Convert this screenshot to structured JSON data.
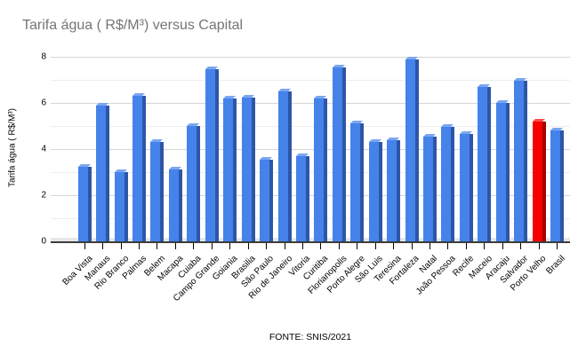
{
  "chart_data": {
    "type": "bar",
    "title": "Tarifa água ( R$/M³) versus Capital",
    "ylabel": "Tarifa água ( R$/M³)",
    "source": "FONTE: SNIS/2021",
    "ylim": [
      0,
      8
    ],
    "yticks": [
      0,
      2,
      4,
      6,
      8
    ],
    "minor_gridlines": [
      1,
      3,
      5,
      7
    ],
    "grid": "on",
    "legend": "none",
    "categories": [
      "Boa Vista",
      "Manaus",
      "Rio Branco",
      "Palmas",
      "Belem",
      "Macapa",
      "Cuiaba",
      "Campo Grande",
      "Goiania",
      "Brasilia",
      "São Paulo",
      "Rio de Janeiro",
      "Vitoria",
      "Curitiba",
      "Florianopolis",
      "Porto Alegre",
      "São Luis",
      "Teresina",
      "Fortaleza",
      "Natal",
      "João Pessoa",
      "Recife",
      "Maceio",
      "Aracaju",
      "Salvador",
      "Porto Velho",
      "Brasil"
    ],
    "values": [
      3.25,
      5.9,
      3.0,
      6.3,
      4.3,
      3.1,
      5.0,
      7.45,
      6.2,
      6.25,
      3.55,
      6.5,
      3.7,
      6.2,
      7.55,
      5.1,
      4.3,
      4.4,
      7.9,
      4.55,
      4.95,
      4.65,
      6.7,
      6.0,
      6.95,
      5.2,
      4.8
    ],
    "highlight_index": 25,
    "highlight_category": "Porto Velho",
    "colors": {
      "bar_face": "#4583ea",
      "bar_side": "#2d56a8",
      "bar_roof": "#7aa6f2",
      "highlight_face": "#f70000",
      "highlight_side": "#a80000",
      "highlight_roof": "#ff4d4d",
      "title_text": "#757575",
      "axis_text": "#000000",
      "gridline_major": "#d6d6d6",
      "gridline_minor": "#ededed",
      "axis_line": "#3c3c3c",
      "floor": "#e7e7e7"
    }
  }
}
